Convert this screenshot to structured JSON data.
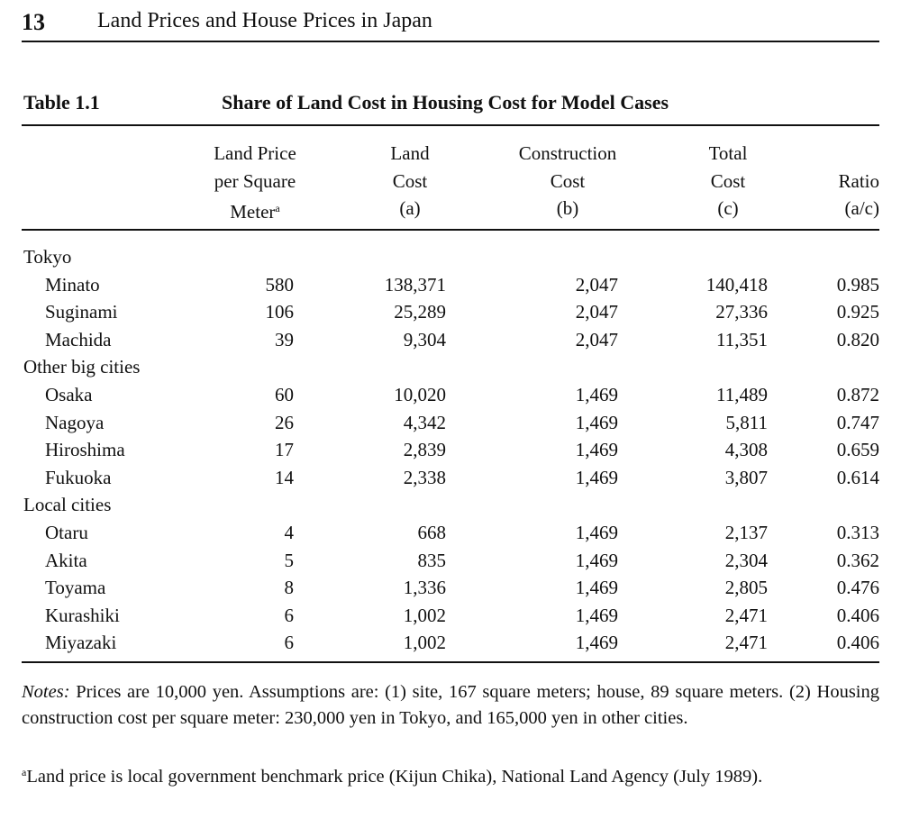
{
  "page_number": "13",
  "running_title": "Land Prices and House Prices in Japan",
  "table": {
    "label": "Table 1.1",
    "caption": "Share of Land Cost in Housing Cost for Model Cases",
    "columns": {
      "land_price": {
        "line1": "Land Price",
        "line2": "per Square",
        "line3": "Meter",
        "footnote_mark": "a"
      },
      "land_cost": {
        "line1": "Land",
        "line2": "Cost",
        "line3": "(a)"
      },
      "construction_cost": {
        "line1": "Construction",
        "line2": "Cost",
        "line3": "(b)"
      },
      "total_cost": {
        "line1": "Total",
        "line2": "Cost",
        "line3": "(c)"
      },
      "ratio": {
        "line1": "Ratio",
        "line2": "(a/c)"
      }
    },
    "groups": [
      {
        "name": "Tokyo",
        "rows": [
          {
            "name": "Minato",
            "land_price": "580",
            "land_cost": "138,371",
            "construction_cost": "2,047",
            "total_cost": "140,418",
            "ratio": "0.985"
          },
          {
            "name": "Suginami",
            "land_price": "106",
            "land_cost": "25,289",
            "construction_cost": "2,047",
            "total_cost": "27,336",
            "ratio": "0.925"
          },
          {
            "name": "Machida",
            "land_price": "39",
            "land_cost": "9,304",
            "construction_cost": "2,047",
            "total_cost": "11,351",
            "ratio": "0.820"
          }
        ]
      },
      {
        "name": "Other big cities",
        "rows": [
          {
            "name": "Osaka",
            "land_price": "60",
            "land_cost": "10,020",
            "construction_cost": "1,469",
            "total_cost": "11,489",
            "ratio": "0.872"
          },
          {
            "name": "Nagoya",
            "land_price": "26",
            "land_cost": "4,342",
            "construction_cost": "1,469",
            "total_cost": "5,811",
            "ratio": "0.747"
          },
          {
            "name": "Hiroshima",
            "land_price": "17",
            "land_cost": "2,839",
            "construction_cost": "1,469",
            "total_cost": "4,308",
            "ratio": "0.659"
          },
          {
            "name": "Fukuoka",
            "land_price": "14",
            "land_cost": "2,338",
            "construction_cost": "1,469",
            "total_cost": "3,807",
            "ratio": "0.614"
          }
        ]
      },
      {
        "name": "Local cities",
        "rows": [
          {
            "name": "Otaru",
            "land_price": "4",
            "land_cost": "668",
            "construction_cost": "1,469",
            "total_cost": "2,137",
            "ratio": "0.313"
          },
          {
            "name": "Akita",
            "land_price": "5",
            "land_cost": "835",
            "construction_cost": "1,469",
            "total_cost": "2,304",
            "ratio": "0.362"
          },
          {
            "name": "Toyama",
            "land_price": "8",
            "land_cost": "1,336",
            "construction_cost": "1,469",
            "total_cost": "2,805",
            "ratio": "0.476"
          },
          {
            "name": "Kurashiki",
            "land_price": "6",
            "land_cost": "1,002",
            "construction_cost": "1,469",
            "total_cost": "2,471",
            "ratio": "0.406"
          },
          {
            "name": "Miyazaki",
            "land_price": "6",
            "land_cost": "1,002",
            "construction_cost": "1,469",
            "total_cost": "2,471",
            "ratio": "0.406"
          }
        ]
      }
    ]
  },
  "notes": {
    "label": "Notes:",
    "text": "Prices are 10,000 yen. Assumptions are: (1) site, 167 square meters; house, 89 square meters. (2) Housing construction cost per square meter: 230,000 yen in Tokyo, and 165,000 yen in other cities."
  },
  "footnote": {
    "mark": "a",
    "text": "Land price is local government benchmark price (Kijun Chika), National Land Agency (July 1989)."
  }
}
